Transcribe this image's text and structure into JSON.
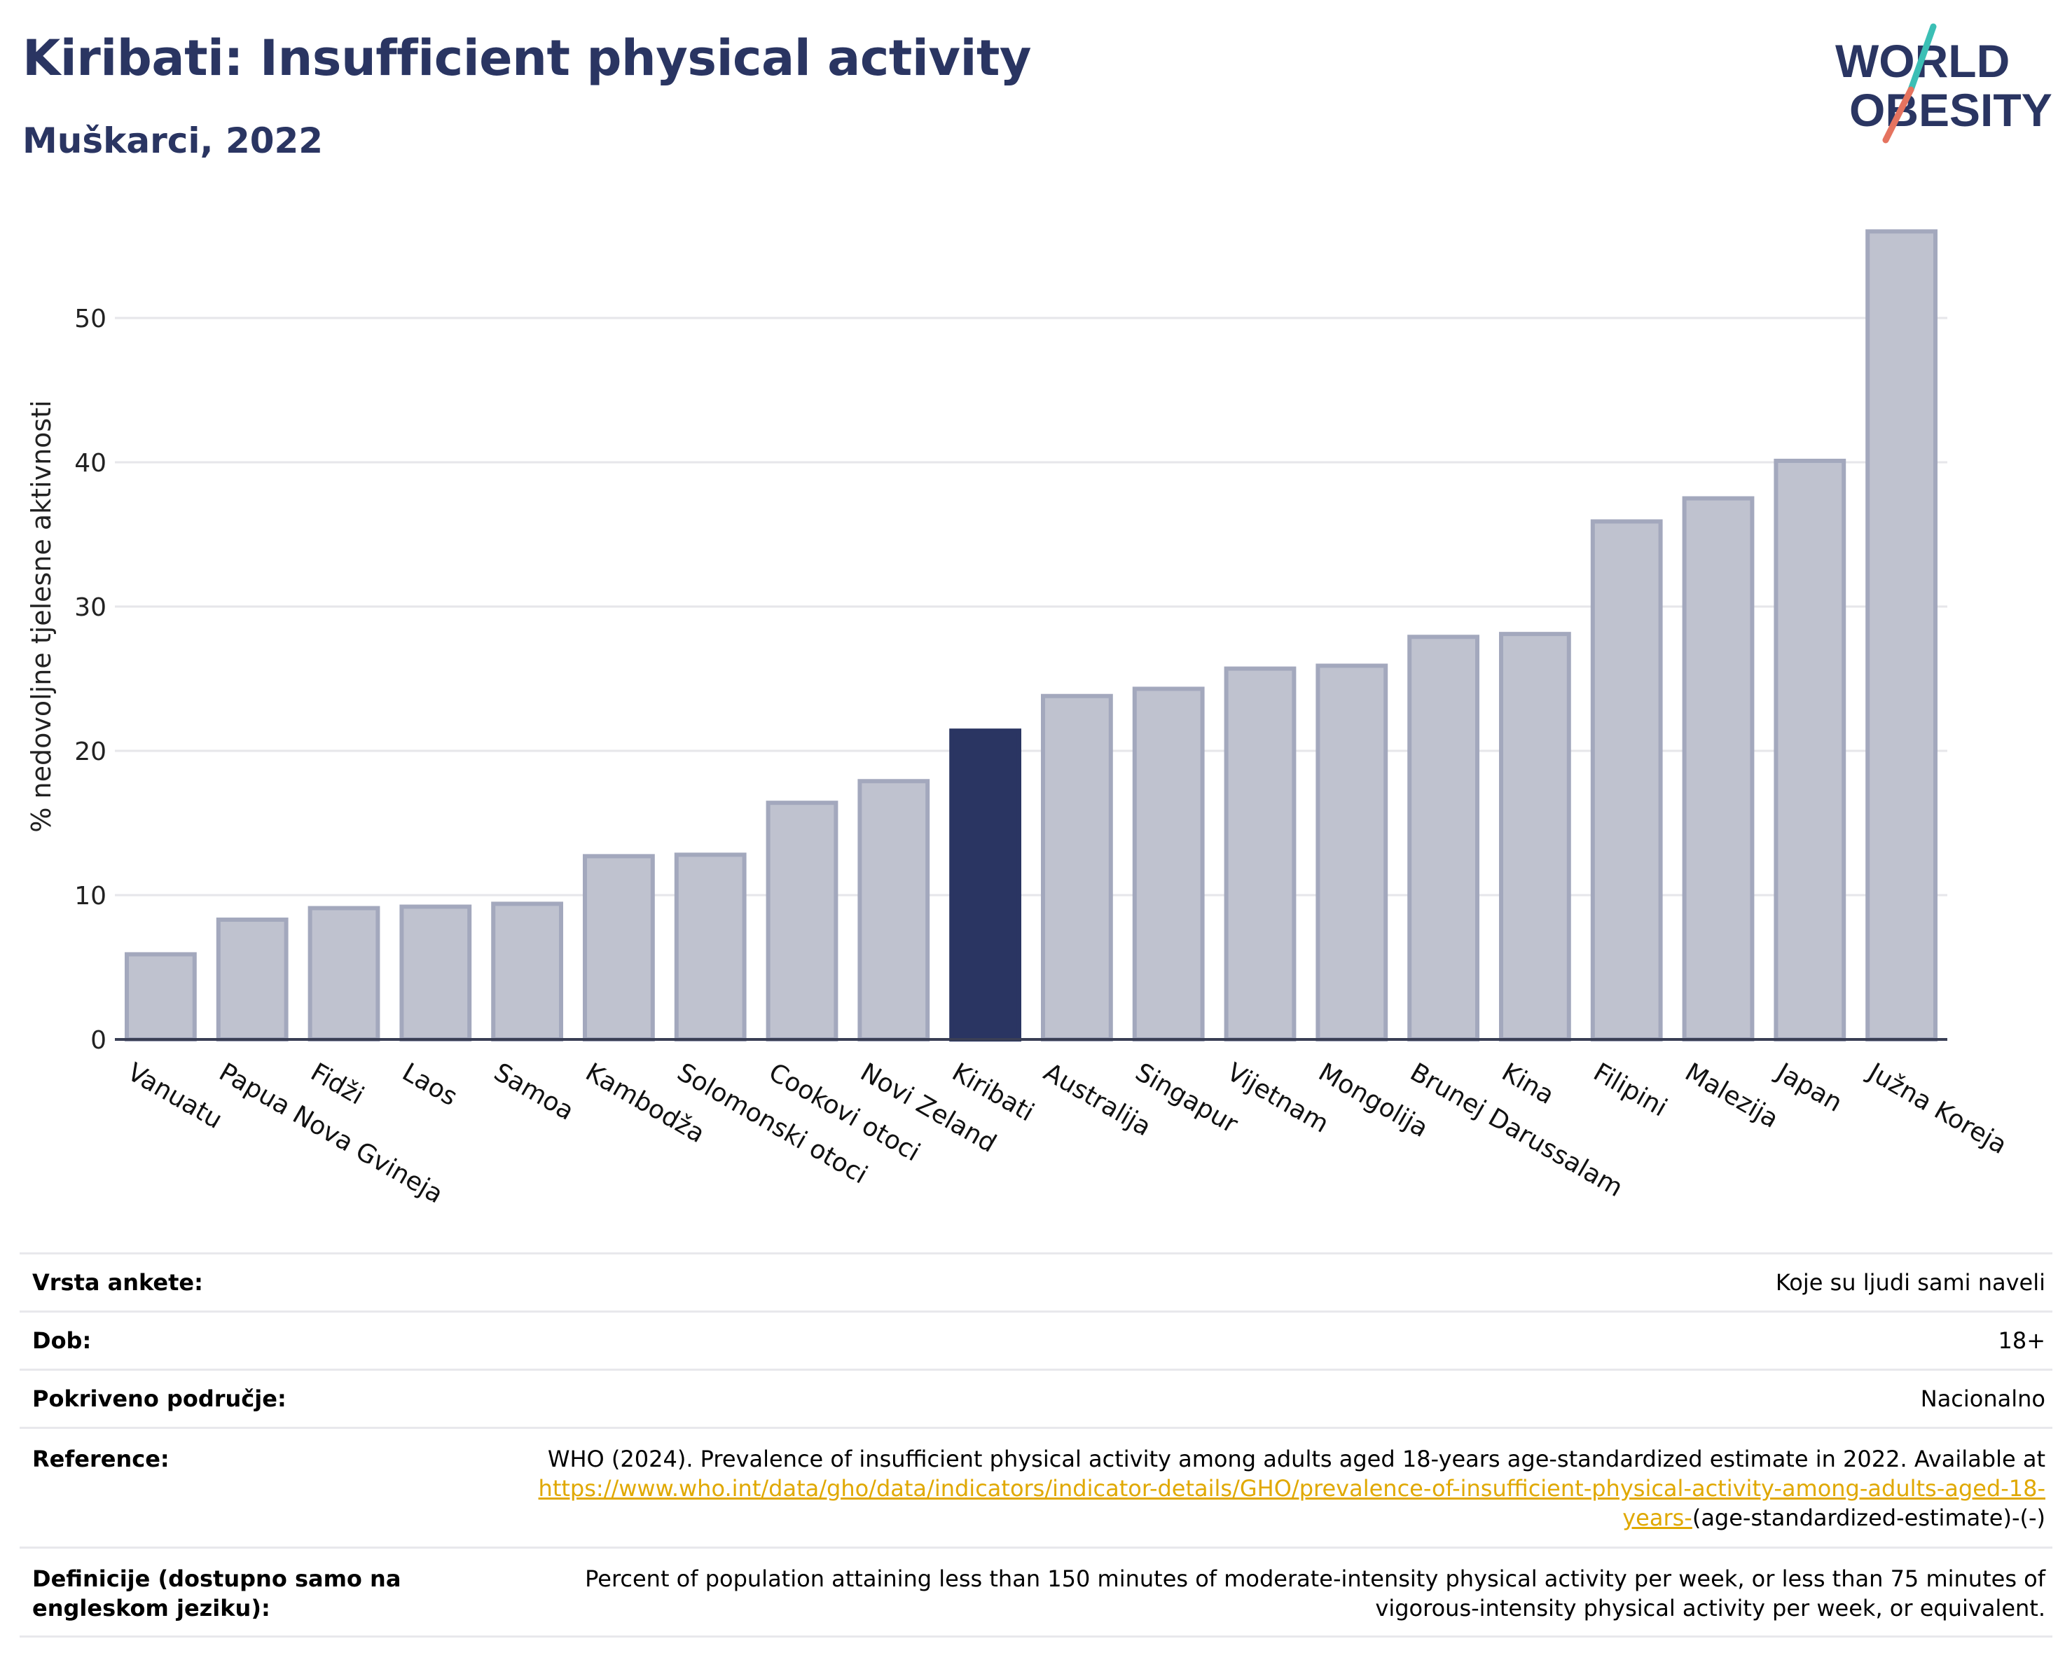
{
  "header": {
    "title": "Kiribati: Insufficient physical activity",
    "subtitle": "Muškarci, 2022",
    "logo_line1": "WORLD",
    "logo_line2": "OBESITY"
  },
  "colors": {
    "title": "#2a3562",
    "bar_default": "#bfc2cf",
    "bar_default_border": "#a3a8bd",
    "bar_highlight": "#2a3562",
    "link": "#e0a800",
    "logo_teal": "#3bbfb5",
    "logo_coral": "#e5735f"
  },
  "chart_data": {
    "type": "bar",
    "ylabel": "% nedovoljne tjelesne aktivnosti",
    "ylim": [
      0,
      57
    ],
    "yticks": [
      0,
      10,
      20,
      30,
      40,
      50
    ],
    "grid": true,
    "highlight": "Kiribati",
    "categories": [
      "Vanuatu",
      "Papua Nova Gvineja",
      "Fidži",
      "Laos",
      "Samoa",
      "Kambodža",
      "Solomonski otoci",
      "Cookovi otoci",
      "Novi Zeland",
      "Kiribati",
      "Australija",
      "Singapur",
      "Vijetnam",
      "Mongolija",
      "Brunej Darussalam",
      "Kina",
      "Filipini",
      "Malezija",
      "Japan",
      "Južna Koreja"
    ],
    "values": [
      5.9,
      8.3,
      9.1,
      9.2,
      9.4,
      12.7,
      12.8,
      16.4,
      17.9,
      21.4,
      23.8,
      24.3,
      25.7,
      25.9,
      27.9,
      28.1,
      35.9,
      37.5,
      40.1,
      56.0
    ]
  },
  "meta": {
    "survey_label": "Vrsta ankete:",
    "survey_value": "Koje su ljudi sami naveli",
    "age_label": "Dob:",
    "age_value": "18+",
    "coverage_label": "Pokriveno područje:",
    "coverage_value": "Nacionalno",
    "reference_label": "Reference:",
    "reference_text": "WHO (2024). Prevalence of insufficient physical activity among adults aged 18-years age-standardized estimate in 2022. Available at",
    "reference_link": "https://www.who.int/data/gho/data/indicators/indicator-details/GHO/prevalence-of-insufficient-physical-activity-among-adults-aged-18-years-",
    "reference_tail": "(age-standardized-estimate)-(-)",
    "definition_label": "Definicije (dostupno samo na engleskom jeziku):",
    "definition_text": "Percent of population attaining less than 150 minutes of moderate-intensity physical activity per week, or less than 75 minutes of vigorous-intensity physical activity per week, or equivalent."
  }
}
